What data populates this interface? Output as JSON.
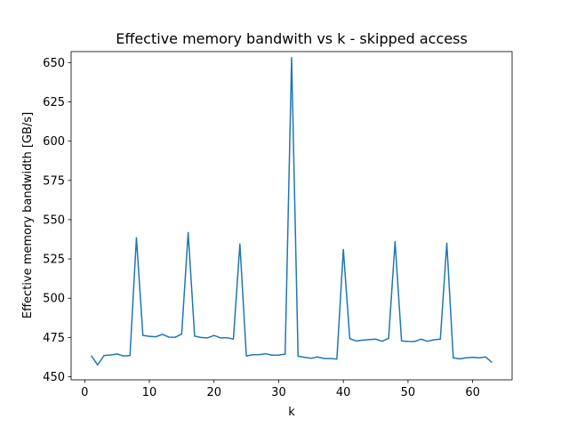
{
  "chart_data": {
    "type": "line",
    "title": "Effective memory bandwith vs k - skipped access",
    "xlabel": "k",
    "ylabel": "Effective memory bandwidth [GB/s]",
    "xlim": [
      -2.1,
      66.1
    ],
    "ylim": [
      448,
      657
    ],
    "xticks": [
      0,
      10,
      20,
      30,
      40,
      50,
      60
    ],
    "yticks": [
      450,
      475,
      500,
      525,
      550,
      575,
      600,
      625,
      650
    ],
    "grid": false,
    "line_color": "#1f77b4",
    "series": [
      {
        "x": [
          1,
          2,
          3,
          4,
          5,
          6,
          7,
          8,
          9,
          10,
          11,
          12,
          13,
          14,
          15,
          16,
          17,
          18,
          19,
          20,
          21,
          22,
          23,
          24,
          25,
          26,
          27,
          28,
          29,
          30,
          31,
          32,
          33,
          34,
          35,
          36,
          37,
          38,
          39,
          40,
          41,
          42,
          43,
          44,
          45,
          46,
          47,
          48,
          49,
          50,
          51,
          52,
          53,
          54,
          55,
          56,
          57,
          58,
          59,
          60,
          61,
          62,
          63
        ],
        "values": [
          463.5,
          457.5,
          463.5,
          463.8,
          464.5,
          463.2,
          463.4,
          538.5,
          476.3,
          475.7,
          475.4,
          477.0,
          475.2,
          475.1,
          477.2,
          541.8,
          475.8,
          475.0,
          474.7,
          476.3,
          474.7,
          474.8,
          474.0,
          534.5,
          463.2,
          464.0,
          464.1,
          464.6,
          463.7,
          463.8,
          464.4,
          653.2,
          463.0,
          462.4,
          461.7,
          462.6,
          461.6,
          461.6,
          461.2,
          531.0,
          474.2,
          472.8,
          473.3,
          473.6,
          473.9,
          472.6,
          474.4,
          536.0,
          472.8,
          472.5,
          472.4,
          473.9,
          472.6,
          473.5,
          473.9,
          535.0,
          462.0,
          461.4,
          462.0,
          462.4,
          462.0,
          462.6,
          459.0
        ]
      }
    ]
  }
}
